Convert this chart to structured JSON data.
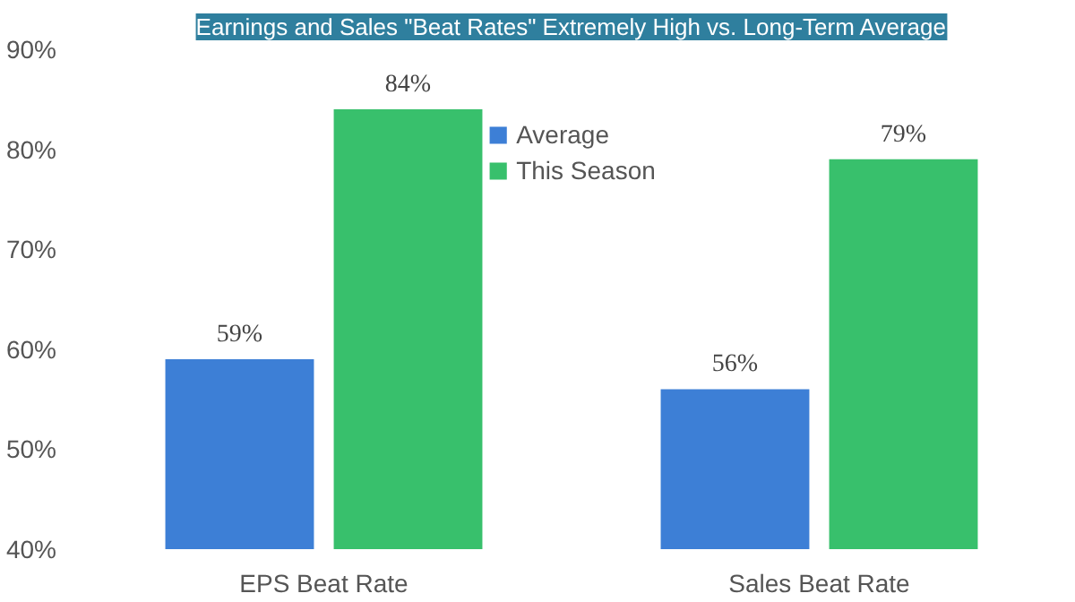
{
  "chart_data": {
    "type": "bar",
    "title": "Earnings and Sales \"Beat Rates\" Extremely High vs. Long-Term Average",
    "categories": [
      "EPS Beat Rate",
      "Sales Beat Rate"
    ],
    "series": [
      {
        "name": "Average",
        "color": "#3d7fd6",
        "values": [
          59,
          56
        ],
        "value_labels": [
          "59%",
          "56%"
        ]
      },
      {
        "name": "This Season",
        "color": "#38c06c",
        "values": [
          84,
          79
        ],
        "value_labels": [
          "84%",
          "79%"
        ]
      }
    ],
    "ylim": [
      40,
      90
    ],
    "yticks": [
      {
        "value": 40,
        "label": "40%"
      },
      {
        "value": 50,
        "label": "50%"
      },
      {
        "value": 60,
        "label": "60%"
      },
      {
        "value": 70,
        "label": "70%"
      },
      {
        "value": 80,
        "label": "80%"
      },
      {
        "value": 90,
        "label": "90%"
      }
    ],
    "grid": false,
    "legend": "top"
  }
}
